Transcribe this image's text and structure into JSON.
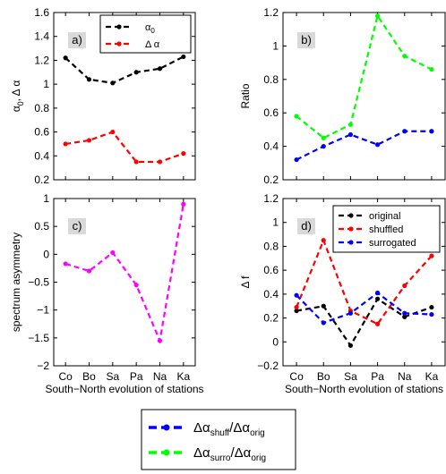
{
  "chart_data": [
    {
      "panel": "a",
      "tag": "a)",
      "type": "line",
      "categories": [
        "Co",
        "Bo",
        "Sa",
        "Pa",
        "Na",
        "Ka"
      ],
      "series": [
        {
          "name": "α0",
          "name_base": "α",
          "name_sub": "0",
          "color": "#000000",
          "values": [
            1.22,
            1.04,
            1.01,
            1.1,
            1.13,
            1.23
          ]
        },
        {
          "name": "Δ α",
          "color": "#ff0000",
          "values": [
            0.5,
            0.53,
            0.6,
            0.35,
            0.35,
            0.42
          ]
        }
      ],
      "ylabel": "α0, Δ α",
      "ylabel_base": "α",
      "ylabel_sub": "0",
      "ylabel_rest": ", Δ α",
      "ylim": [
        0.2,
        1.6
      ],
      "yticks": [
        "0.2",
        "0.4",
        "0.6",
        "0.8",
        "1",
        "1.2",
        "1.4",
        "1.6"
      ],
      "show_xticklabels": false,
      "legend": "top-right"
    },
    {
      "panel": "b",
      "tag": "b)",
      "type": "line",
      "categories": [
        "Co",
        "Bo",
        "Sa",
        "Pa",
        "Na",
        "Ka"
      ],
      "series": [
        {
          "key": "shuff",
          "color": "#0000ff",
          "values": [
            0.32,
            0.4,
            0.47,
            0.41,
            0.49,
            0.49
          ]
        },
        {
          "key": "surro",
          "color": "#00ff00",
          "values": [
            0.58,
            0.45,
            0.53,
            1.18,
            0.94,
            0.86
          ]
        }
      ],
      "ylabel": "Ratio",
      "ylim": [
        0.2,
        1.2
      ],
      "yticks": [
        "0.2",
        "0.4",
        "0.6",
        "0.8",
        "1",
        "1.2"
      ],
      "show_xticklabels": false
    },
    {
      "panel": "c",
      "tag": "c)",
      "type": "line",
      "categories": [
        "Co",
        "Bo",
        "Sa",
        "Pa",
        "Na",
        "Ka"
      ],
      "series": [
        {
          "color": "#ff00ff",
          "values": [
            -0.17,
            -0.3,
            0.03,
            -0.55,
            -1.55,
            0.9
          ]
        }
      ],
      "ylabel": "spectrum asymmetry",
      "xlabel": "South−North evolution of stations",
      "ylim": [
        -2,
        1
      ],
      "yticks": [
        "−2",
        "−1.5",
        "−1",
        "−0.5",
        "0",
        "0.5",
        "1"
      ],
      "show_xticklabels": true
    },
    {
      "panel": "d",
      "tag": "d)",
      "type": "line",
      "categories": [
        "Co",
        "Bo",
        "Sa",
        "Pa",
        "Na",
        "Ka"
      ],
      "series": [
        {
          "name": "original",
          "color": "#000000",
          "values": [
            0.26,
            0.3,
            -0.03,
            0.36,
            0.21,
            0.29
          ]
        },
        {
          "name": "shuffled",
          "color": "#ff0000",
          "values": [
            0.29,
            0.85,
            0.26,
            0.15,
            0.47,
            0.72
          ]
        },
        {
          "name": "surrogated",
          "color": "#0000ff",
          "values": [
            0.39,
            0.16,
            0.24,
            0.41,
            0.24,
            0.23
          ]
        }
      ],
      "ylabel": "Δ f",
      "xlabel": "South−North evolution of stations",
      "ylim": [
        -0.2,
        1.2
      ],
      "yticks": [
        "−0.2",
        "0",
        "0.2",
        "0.4",
        "0.6",
        "0.8",
        "1",
        "1.2"
      ],
      "show_xticklabels": true,
      "legend": "top-right"
    }
  ],
  "shared_legend": {
    "placement": "bottom-center",
    "entries": [
      {
        "key": "shuff",
        "color": "#0000ff",
        "label": "Δα_shuff/Δα_orig"
      },
      {
        "key": "surro",
        "color": "#00ff00",
        "label": "Δα_surro/Δα_orig"
      }
    ]
  }
}
